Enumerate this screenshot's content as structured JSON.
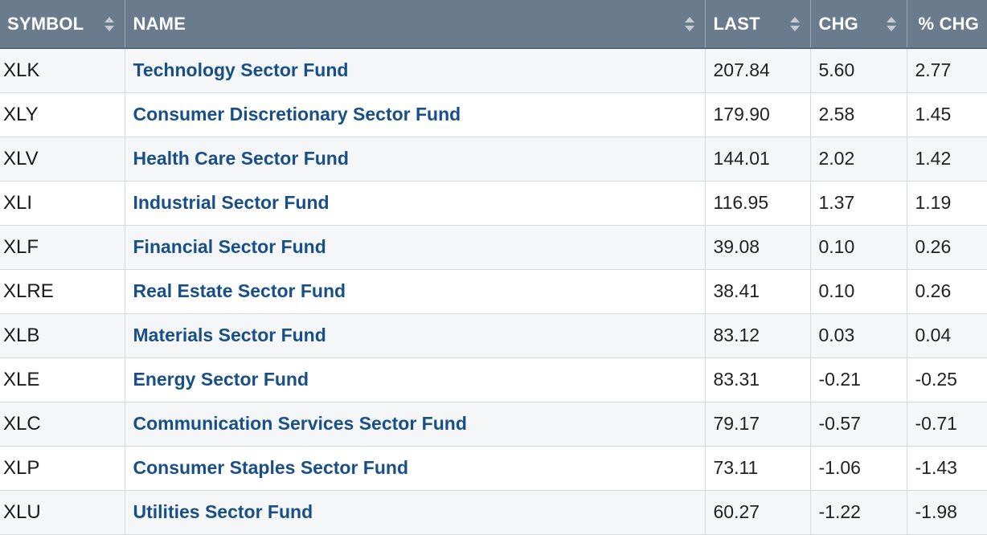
{
  "columns": [
    {
      "label": "SYMBOL"
    },
    {
      "label": "NAME"
    },
    {
      "label": "LAST"
    },
    {
      "label": "CHG"
    },
    {
      "label": "% CHG"
    }
  ],
  "sort_icon": "sort-up-down-icon",
  "rows": [
    {
      "symbol": "XLK",
      "name": "Technology Sector Fund",
      "last": "207.84",
      "chg": "5.60",
      "pct": "2.77"
    },
    {
      "symbol": "XLY",
      "name": "Consumer Discretionary Sector Fund",
      "last": "179.90",
      "chg": "2.58",
      "pct": "1.45"
    },
    {
      "symbol": "XLV",
      "name": "Health Care Sector Fund",
      "last": "144.01",
      "chg": "2.02",
      "pct": "1.42"
    },
    {
      "symbol": "XLI",
      "name": "Industrial Sector Fund",
      "last": "116.95",
      "chg": "1.37",
      "pct": "1.19"
    },
    {
      "symbol": "XLF",
      "name": "Financial Sector Fund",
      "last": "39.08",
      "chg": "0.10",
      "pct": "0.26"
    },
    {
      "symbol": "XLRE",
      "name": "Real Estate Sector Fund",
      "last": "38.41",
      "chg": "0.10",
      "pct": "0.26"
    },
    {
      "symbol": "XLB",
      "name": "Materials Sector Fund",
      "last": "83.12",
      "chg": "0.03",
      "pct": "0.04"
    },
    {
      "symbol": "XLE",
      "name": "Energy Sector Fund",
      "last": "83.31",
      "chg": "-0.21",
      "pct": "-0.25"
    },
    {
      "symbol": "XLC",
      "name": "Communication Services Sector Fund",
      "last": "79.17",
      "chg": "-0.57",
      "pct": "-0.71"
    },
    {
      "symbol": "XLP",
      "name": "Consumer Staples Sector Fund",
      "last": "73.11",
      "chg": "-1.06",
      "pct": "-1.43"
    },
    {
      "symbol": "XLU",
      "name": "Utilities Sector Fund",
      "last": "60.27",
      "chg": "-1.22",
      "pct": "-1.98"
    }
  ],
  "colors": {
    "header_bg": "#6b7b8e",
    "header_text": "#ffffff",
    "link": "#184f86",
    "row_alt": "#f4f6f8",
    "border": "#d4d9df"
  }
}
